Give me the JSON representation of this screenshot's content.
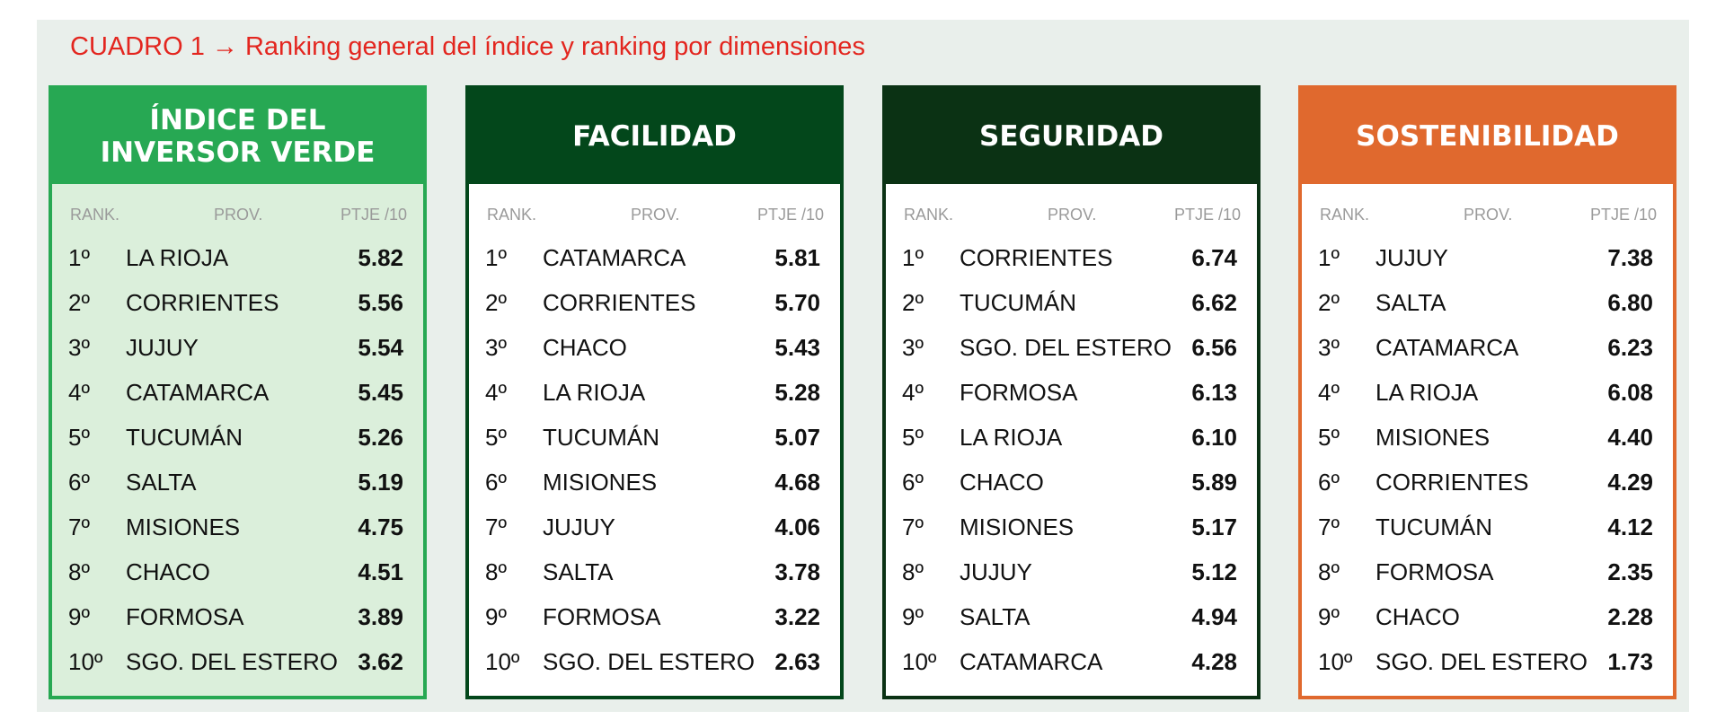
{
  "title": "CUADRO 1 → Ranking general del índice y ranking por dimensiones",
  "panels": [
    {
      "heading": "ÍNDICE DEL INVERSOR VERDE",
      "header_color": "#27a853",
      "body_color": "#dbefdb",
      "columns": [
        "RANK.",
        "PROV.",
        "PTJE /10"
      ],
      "rows": [
        [
          "1º",
          "LA RIOJA",
          "5.82"
        ],
        [
          "2º",
          "CORRIENTES",
          "5.56"
        ],
        [
          "3º",
          "JUJUY",
          "5.54"
        ],
        [
          "4º",
          "CATAMARCA",
          "5.45"
        ],
        [
          "5º",
          "TUCUMÁN",
          "5.26"
        ],
        [
          "6º",
          "SALTA",
          "5.19"
        ],
        [
          "7º",
          "MISIONES",
          "4.75"
        ],
        [
          "8º",
          "CHACO",
          "4.51"
        ],
        [
          "9º",
          "FORMOSA",
          "3.89"
        ],
        [
          "10º",
          "SGO. DEL ESTERO",
          "3.62"
        ]
      ]
    },
    {
      "heading": "FACILIDAD",
      "header_color": "#03471b",
      "body_color": "#ffffff",
      "columns": [
        "RANK.",
        "PROV.",
        "PTJE /10"
      ],
      "rows": [
        [
          "1º",
          "CATAMARCA",
          "5.81"
        ],
        [
          "2º",
          "CORRIENTES",
          "5.70"
        ],
        [
          "3º",
          "CHACO",
          "5.43"
        ],
        [
          "4º",
          "LA RIOJA",
          "5.28"
        ],
        [
          "5º",
          "TUCUMÁN",
          "5.07"
        ],
        [
          "6º",
          "MISIONES",
          "4.68"
        ],
        [
          "7º",
          "JUJUY",
          "4.06"
        ],
        [
          "8º",
          "SALTA",
          "3.78"
        ],
        [
          "9º",
          "FORMOSA",
          "3.22"
        ],
        [
          "10º",
          "SGO. DEL ESTERO",
          "2.63"
        ]
      ]
    },
    {
      "heading": "SEGURIDAD",
      "header_color": "#0b3214",
      "body_color": "#ffffff",
      "columns": [
        "RANK.",
        "PROV.",
        "PTJE /10"
      ],
      "rows": [
        [
          "1º",
          "CORRIENTES",
          "6.74"
        ],
        [
          "2º",
          "TUCUMÁN",
          "6.62"
        ],
        [
          "3º",
          "SGO. DEL ESTERO",
          "6.56"
        ],
        [
          "4º",
          "FORMOSA",
          "6.13"
        ],
        [
          "5º",
          "LA RIOJA",
          "6.10"
        ],
        [
          "6º",
          "CHACO",
          "5.89"
        ],
        [
          "7º",
          "MISIONES",
          "5.17"
        ],
        [
          "8º",
          "JUJUY",
          "5.12"
        ],
        [
          "9º",
          "SALTA",
          "4.94"
        ],
        [
          "10º",
          "CATAMARCA",
          "4.28"
        ]
      ]
    },
    {
      "heading": "SOSTENIBILIDAD",
      "header_color": "#e0692e",
      "body_color": "#ffffff",
      "columns": [
        "RANK.",
        "PROV.",
        "PTJE /10"
      ],
      "rows": [
        [
          "1º",
          "JUJUY",
          "7.38"
        ],
        [
          "2º",
          "SALTA",
          "6.80"
        ],
        [
          "3º",
          "CATAMARCA",
          "6.23"
        ],
        [
          "4º",
          "LA RIOJA",
          "6.08"
        ],
        [
          "5º",
          "MISIONES",
          "4.40"
        ],
        [
          "6º",
          "CORRIENTES",
          "4.29"
        ],
        [
          "7º",
          "TUCUMÁN",
          "4.12"
        ],
        [
          "8º",
          "FORMOSA",
          "2.35"
        ],
        [
          "9º",
          "CHACO",
          "2.28"
        ],
        [
          "10º",
          "SGO. DEL ESTERO",
          "1.73"
        ]
      ]
    }
  ]
}
